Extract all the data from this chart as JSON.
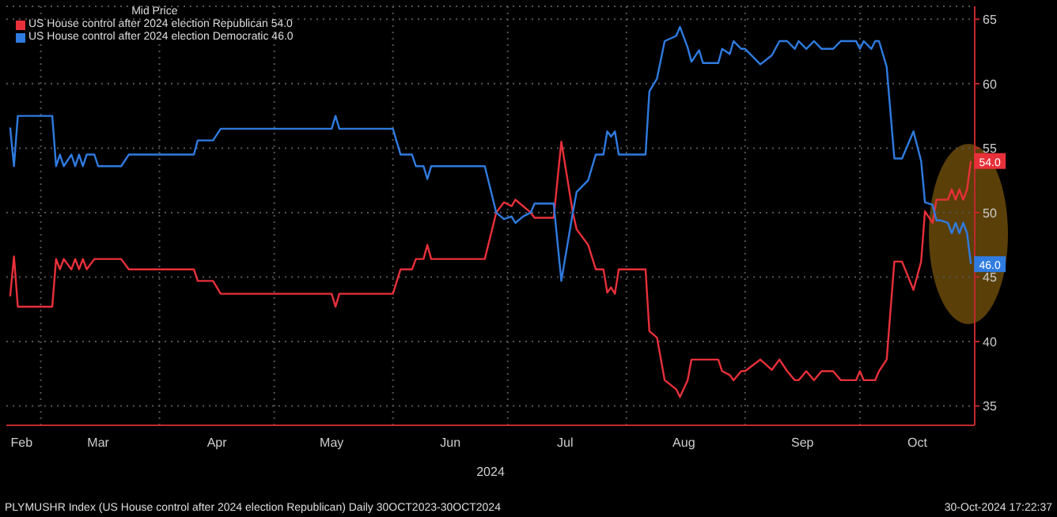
{
  "chart_data": {
    "type": "line",
    "legend_title": "Mid Price",
    "legend": "top left",
    "grid": true,
    "marker": "none",
    "line_style": "solid",
    "xlabel": "2024",
    "annotations": [
      "PLYMUSHR Index (US House control after 2024 election Republican)  Daily 30OCT2023-30OCT2024",
      "30-Oct-2024 17:22:37"
    ],
    "xlim": [
      "2024-02-21",
      "2024-10-31"
    ],
    "xticks": [
      {
        "value": "2024-02-25",
        "label": "Feb"
      },
      {
        "value": "2024-03-01",
        "label": null
      },
      {
        "value": "2024-03-16",
        "label": "Mar"
      },
      {
        "value": "2024-04-01",
        "label": null
      },
      {
        "value": "2024-04-16",
        "label": "Apr"
      },
      {
        "value": "2024-05-01",
        "label": null
      },
      {
        "value": "2024-05-16",
        "label": "May"
      },
      {
        "value": "2024-06-01",
        "label": null
      },
      {
        "value": "2024-06-16",
        "label": "Jun"
      },
      {
        "value": "2024-07-01",
        "label": null
      },
      {
        "value": "2024-07-16",
        "label": "Jul"
      },
      {
        "value": "2024-08-01",
        "label": null
      },
      {
        "value": "2024-08-16",
        "label": "Aug"
      },
      {
        "value": "2024-09-01",
        "label": null
      },
      {
        "value": "2024-09-16",
        "label": "Sep"
      },
      {
        "value": "2024-10-01",
        "label": null
      },
      {
        "value": "2024-10-16",
        "label": "Oct"
      }
    ],
    "ylim": [
      33.5,
      66
    ],
    "yticks": [
      35,
      40,
      45,
      50,
      55,
      60,
      65
    ],
    "x": [
      "2024-02-22",
      "2024-02-23",
      "2024-02-24",
      "2024-03-04",
      "2024-03-05",
      "2024-03-06",
      "2024-03-07",
      "2024-03-09",
      "2024-03-10",
      "2024-03-11",
      "2024-03-12",
      "2024-03-13",
      "2024-03-15",
      "2024-03-16",
      "2024-03-22",
      "2024-03-24",
      "2024-04-10",
      "2024-04-11",
      "2024-04-15",
      "2024-04-17",
      "2024-05-16",
      "2024-05-17",
      "2024-05-18",
      "2024-06-01",
      "2024-06-03",
      "2024-06-06",
      "2024-06-07",
      "2024-06-09",
      "2024-06-10",
      "2024-06-11",
      "2024-06-25",
      "2024-06-28",
      "2024-06-30",
      "2024-07-02",
      "2024-07-03",
      "2024-07-05",
      "2024-07-07",
      "2024-07-08",
      "2024-07-13",
      "2024-07-15",
      "2024-07-18",
      "2024-07-19",
      "2024-07-22",
      "2024-07-24",
      "2024-07-26",
      "2024-07-27",
      "2024-07-28",
      "2024-07-29",
      "2024-07-30",
      "2024-08-06",
      "2024-08-07",
      "2024-08-09",
      "2024-08-11",
      "2024-08-14",
      "2024-08-15",
      "2024-08-17",
      "2024-08-18",
      "2024-08-20",
      "2024-08-21",
      "2024-08-25",
      "2024-08-26",
      "2024-08-28",
      "2024-08-29",
      "2024-08-31",
      "2024-09-01",
      "2024-09-05",
      "2024-09-08",
      "2024-09-10",
      "2024-09-12",
      "2024-09-14",
      "2024-09-15",
      "2024-09-17",
      "2024-09-19",
      "2024-09-21",
      "2024-09-24",
      "2024-09-26",
      "2024-09-30",
      "2024-10-01",
      "2024-10-02",
      "2024-10-04",
      "2024-10-05",
      "2024-10-06",
      "2024-10-08",
      "2024-10-10",
      "2024-10-12",
      "2024-10-15",
      "2024-10-17",
      "2024-10-18",
      "2024-10-20",
      "2024-10-21",
      "2024-10-22",
      "2024-10-24",
      "2024-10-25",
      "2024-10-26",
      "2024-10-27",
      "2024-10-28",
      "2024-10-29",
      "2024-10-30"
    ],
    "series": [
      {
        "name": "US House control after 2024 election Republican  54.0",
        "color": "#e8303a",
        "values": [
          43.5,
          46.6,
          42.7,
          42.7,
          46.4,
          45.6,
          46.4,
          45.6,
          46.4,
          45.6,
          46.4,
          45.6,
          46.4,
          46.4,
          46.4,
          45.6,
          45.6,
          44.7,
          44.7,
          43.7,
          43.7,
          42.7,
          43.7,
          43.7,
          45.6,
          45.6,
          46.4,
          46.4,
          47.5,
          46.4,
          46.4,
          50,
          50.8,
          50.5,
          51,
          50.5,
          50,
          49.6,
          49.6,
          55.5,
          50,
          48.7,
          47.5,
          45.6,
          45.6,
          43.8,
          44.2,
          43.7,
          45.6,
          45.6,
          40.8,
          40.3,
          37,
          36.3,
          35.7,
          37,
          38.6,
          38.6,
          38.6,
          38.6,
          37.7,
          37.4,
          37,
          37.7,
          37.7,
          38.6,
          37.8,
          38.6,
          37.7,
          37,
          37,
          37.7,
          37,
          37.7,
          37.7,
          37,
          37,
          37.7,
          37,
          37,
          37,
          37.7,
          38.6,
          46.2,
          46.2,
          44,
          46.2,
          50.1,
          49.2,
          51,
          51,
          51,
          51.8,
          51,
          51.8,
          51,
          51.8,
          54
        ],
        "value_labels": [
          null,
          null,
          null,
          null,
          null,
          null,
          null,
          null,
          null,
          null,
          null,
          null,
          null,
          null,
          null,
          null,
          null,
          null,
          null,
          null,
          null,
          null,
          null,
          null,
          null,
          null,
          null,
          null,
          null,
          null,
          null,
          null,
          null,
          null,
          null,
          null,
          null,
          null,
          null,
          null,
          null,
          null,
          null,
          null,
          null,
          null,
          null,
          null,
          null,
          null,
          null,
          null,
          null,
          null,
          null,
          null,
          null,
          null,
          null,
          null,
          null,
          null,
          null,
          null,
          null,
          null,
          null,
          null,
          null,
          null,
          null,
          null,
          null,
          null,
          null,
          null,
          null,
          null,
          null,
          null,
          null,
          null,
          null,
          null,
          null,
          null,
          null,
          null,
          null,
          null,
          null,
          null,
          null,
          null,
          null,
          null,
          null,
          "54.0"
        ]
      },
      {
        "name": "US House control after 2024 election Democratic  46.0",
        "color": "#2f7be0",
        "values": [
          56.6,
          53.6,
          57.5,
          57.5,
          53.6,
          54.5,
          53.6,
          54.5,
          53.6,
          54.5,
          53.6,
          54.5,
          54.5,
          53.6,
          53.6,
          54.5,
          54.5,
          55.6,
          55.6,
          56.5,
          56.5,
          57.5,
          56.5,
          56.5,
          54.5,
          54.5,
          53.6,
          53.6,
          52.6,
          53.6,
          53.6,
          50,
          49.5,
          49.7,
          49.2,
          49.7,
          50,
          50.7,
          50.7,
          44.7,
          50,
          51.6,
          52.5,
          54.5,
          54.5,
          56.3,
          55.9,
          56.3,
          54.5,
          54.5,
          59.4,
          60.4,
          63.3,
          63.7,
          64.4,
          62.8,
          61.7,
          62.6,
          61.6,
          61.6,
          62.7,
          62.3,
          63.3,
          62.7,
          62.7,
          61.5,
          62.2,
          63.3,
          63.3,
          62.7,
          63.3,
          62.7,
          63.3,
          62.7,
          62.7,
          63.3,
          63.3,
          62.7,
          63.3,
          62.7,
          63.3,
          63.3,
          61.3,
          54.2,
          54.2,
          56.3,
          54,
          50.8,
          50.6,
          49.4,
          49.4,
          49.2,
          48.4,
          49.2,
          48.4,
          49.2,
          48.4,
          46
        ],
        "value_labels": [
          null,
          null,
          null,
          null,
          null,
          null,
          null,
          null,
          null,
          null,
          null,
          null,
          null,
          null,
          null,
          null,
          null,
          null,
          null,
          null,
          null,
          null,
          null,
          null,
          null,
          null,
          null,
          null,
          null,
          null,
          null,
          null,
          null,
          null,
          null,
          null,
          null,
          null,
          null,
          null,
          null,
          null,
          null,
          null,
          null,
          null,
          null,
          null,
          null,
          null,
          null,
          null,
          null,
          null,
          null,
          null,
          null,
          null,
          null,
          null,
          null,
          null,
          null,
          null,
          null,
          null,
          null,
          null,
          null,
          null,
          null,
          null,
          null,
          null,
          null,
          null,
          null,
          null,
          null,
          null,
          null,
          null,
          null,
          null,
          null,
          null,
          null,
          null,
          null,
          null,
          null,
          null,
          null,
          null,
          null,
          null,
          null,
          "46.0"
        ]
      }
    ]
  }
}
